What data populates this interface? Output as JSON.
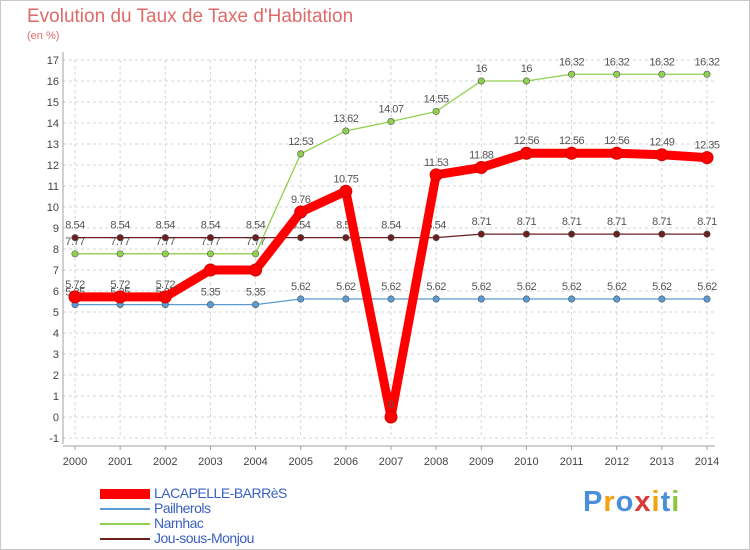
{
  "chart_data": {
    "type": "line",
    "title": "Evolution du Taux de Taxe d'Habitation",
    "subtitle": "(en %)",
    "x": [
      "2000",
      "2001",
      "2002",
      "2003",
      "2004",
      "2005",
      "2006",
      "2007",
      "2008",
      "2009",
      "2010",
      "2011",
      "2012",
      "2013",
      "2014"
    ],
    "ylim": [
      -1,
      17
    ],
    "yticks": [
      -1,
      0,
      1,
      2,
      3,
      4,
      5,
      6,
      7,
      8,
      9,
      10,
      11,
      12,
      13,
      14,
      15,
      16,
      17
    ],
    "grid": true,
    "legend_position": "bottom-left",
    "series": [
      {
        "name": "LACAPELLE-BARRèS",
        "color": "#ff0000",
        "values": [
          5.72,
          5.72,
          5.72,
          7.0,
          7.0,
          9.76,
          10.75,
          0,
          11.53,
          11.88,
          12.56,
          12.56,
          12.56,
          12.49,
          12.35
        ],
        "labels": [
          "5.72",
          "5.72",
          "5.72",
          "",
          "",
          "9.76",
          "10.75",
          "0",
          "11.53",
          "11.88",
          "12.56",
          "12.56",
          "12.56",
          "12.49",
          "12.35"
        ]
      },
      {
        "name": "Pailherols",
        "color": "#5b9bd5",
        "values": [
          5.35,
          5.35,
          5.35,
          5.35,
          5.35,
          5.62,
          5.62,
          5.62,
          5.62,
          5.62,
          5.62,
          5.62,
          5.62,
          5.62,
          5.62
        ],
        "labels": [
          "5.35",
          "5.35",
          "5.35",
          "5.35",
          "5.35",
          "5.62",
          "5.62",
          "5.62",
          "5.62",
          "5.62",
          "5.62",
          "5.62",
          "5.62",
          "5.62",
          "5.62"
        ]
      },
      {
        "name": "Narnhac",
        "color": "#8fd14f",
        "values": [
          7.77,
          7.77,
          7.77,
          7.77,
          7.77,
          12.53,
          13.62,
          14.07,
          14.55,
          16,
          16,
          16.32,
          16.32,
          16.32,
          16.32
        ],
        "labels": [
          "7.77",
          "7.77",
          "7.77",
          "7.77",
          "7.77",
          "12.53",
          "13.62",
          "14.07",
          "14.55",
          "16",
          "16",
          "16.32",
          "16.32",
          "16.32",
          "16.32"
        ]
      },
      {
        "name": "Jou-sous-Monjou",
        "color": "#6b1f1f",
        "values": [
          8.54,
          8.54,
          8.54,
          8.54,
          8.54,
          8.54,
          8.54,
          8.54,
          8.54,
          8.71,
          8.71,
          8.71,
          8.71,
          8.71,
          8.71
        ],
        "labels": [
          "8.54",
          "8.54",
          "8.54",
          "8.54",
          "8.54",
          "8.54",
          "8.54",
          "8.54",
          "8.54",
          "8.71",
          "8.71",
          "8.71",
          "8.71",
          "8.71",
          "8.71"
        ]
      }
    ]
  },
  "brand": {
    "letters": [
      "P",
      "r",
      "o",
      "x",
      "i",
      "t",
      "i"
    ],
    "colors": [
      "#4a90d9",
      "#f2a20f",
      "#4a90d9",
      "#d93a3a",
      "#f2a20f",
      "#4a90d9",
      "#8cc63f"
    ]
  }
}
